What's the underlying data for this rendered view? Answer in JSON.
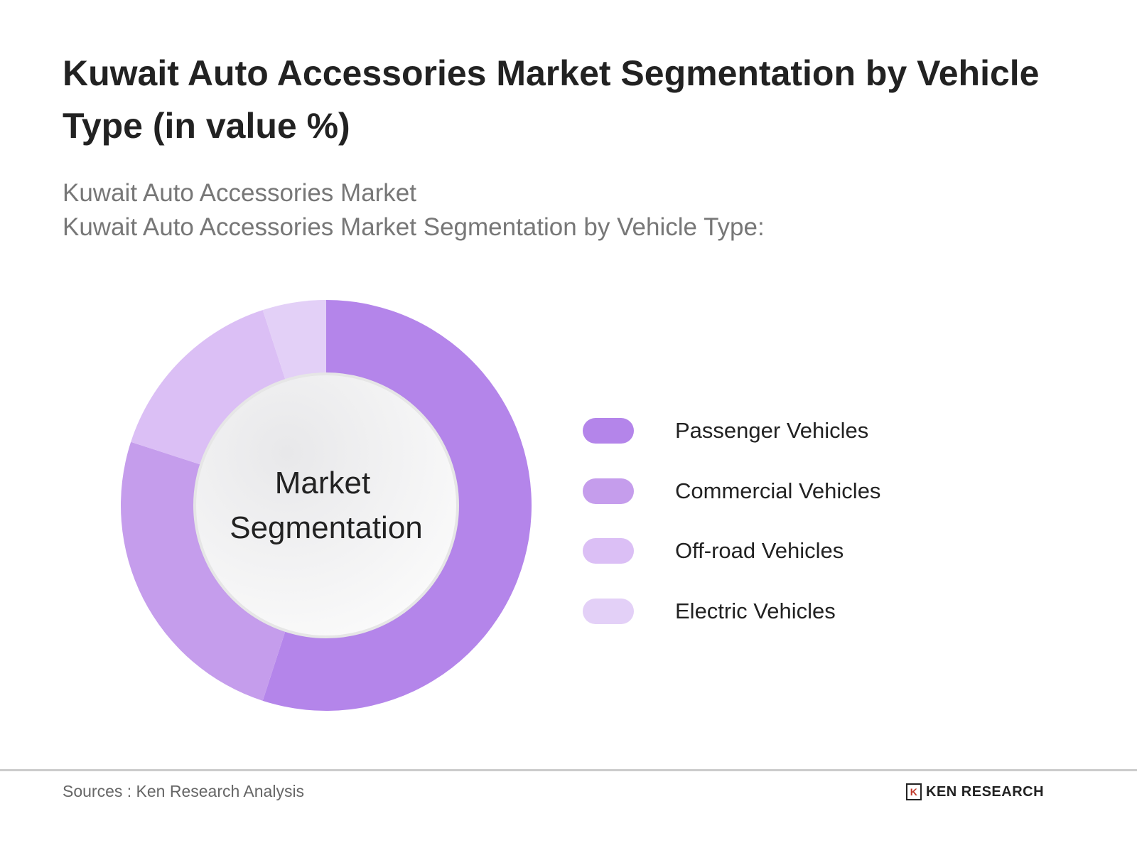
{
  "chart_data": {
    "type": "pie",
    "variant": "donut",
    "title": "Kuwait Auto Accessories Market Segmentation by Vehicle Type (in value %)",
    "subtitle_lines": [
      "Kuwait Auto Accessories Market",
      "Kuwait Auto Accessories Market Segmentation by Vehicle Type:"
    ],
    "center_label_lines": [
      "Market",
      "Segmentation"
    ],
    "categories": [
      "Passenger Vehicles",
      "Commercial Vehicles",
      "Off-road Vehicles",
      "Electric Vehicles"
    ],
    "values": [
      55,
      25,
      15,
      5
    ],
    "colors": [
      "#b485ea",
      "#c59dec",
      "#dbbff5",
      "#e3d0f7"
    ],
    "legend_position": "right"
  },
  "footer": {
    "source": "Sources : Ken Research Analysis",
    "logo_text": "KEN RESEARCH"
  }
}
